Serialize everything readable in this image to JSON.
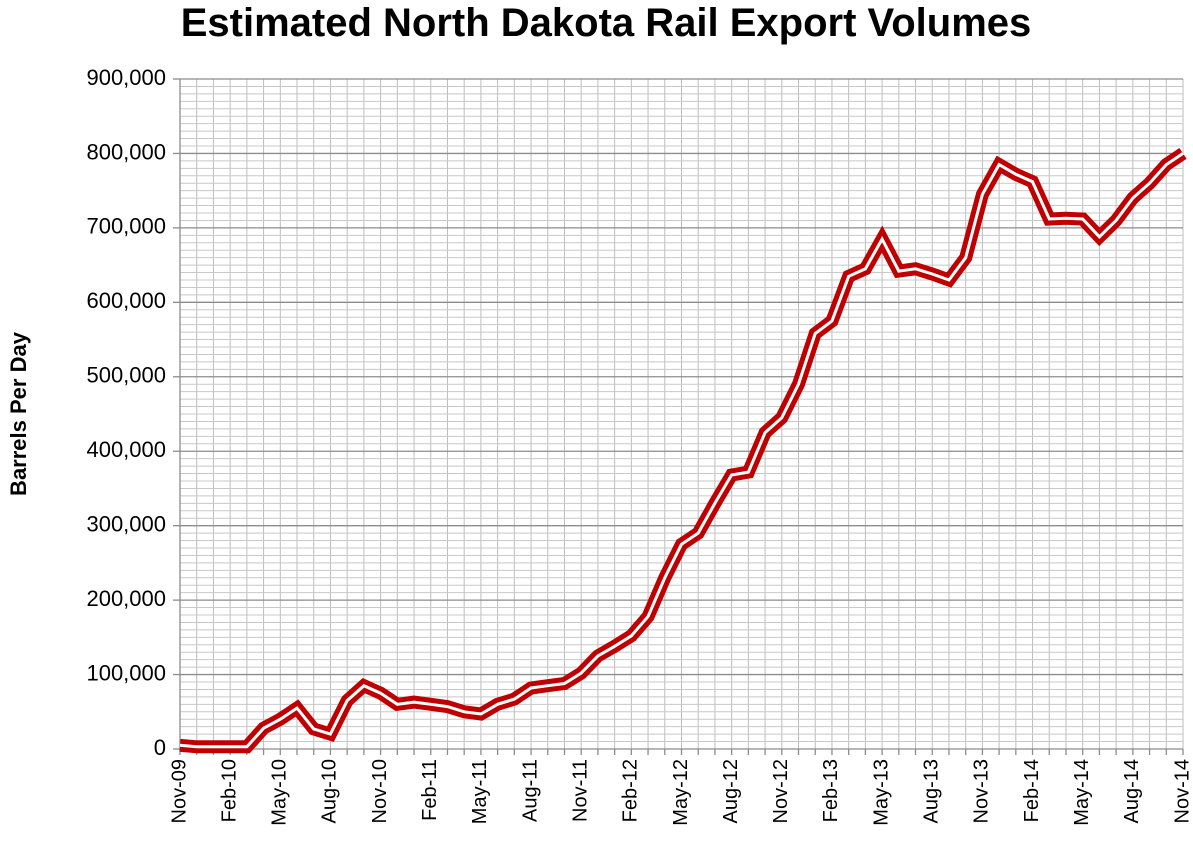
{
  "chart_data": {
    "type": "line",
    "title": "Estimated North Dakota Rail Export Volumes",
    "y_label": "Barrels Per Day",
    "categories": [
      "Nov-09",
      null,
      null,
      "Feb-10",
      null,
      null,
      "May-10",
      null,
      null,
      "Aug-10",
      null,
      null,
      "Nov-10",
      null,
      null,
      "Feb-11",
      null,
      null,
      "May-11",
      null,
      null,
      "Aug-11",
      null,
      null,
      "Nov-11",
      null,
      null,
      "Feb-12",
      null,
      null,
      "May-12",
      null,
      null,
      "Aug-12",
      null,
      null,
      "Nov-12",
      null,
      null,
      "Feb-13",
      null,
      null,
      "May-13",
      null,
      null,
      "Aug-13",
      null,
      null,
      "Nov-13",
      null,
      null,
      "Feb-14",
      null,
      null,
      "May-14",
      null,
      null,
      "Aug-14",
      null,
      null,
      "Nov-14"
    ],
    "series": [
      {
        "name": "Barrels Per Day",
        "color": "#c00000",
        "values": [
          5000,
          3000,
          3000,
          3000,
          3000,
          28000,
          40000,
          55000,
          27000,
          20000,
          65000,
          85000,
          75000,
          60000,
          63000,
          60000,
          57000,
          50000,
          47000,
          60000,
          67000,
          82000,
          85000,
          88000,
          102000,
          125000,
          138000,
          152000,
          178000,
          230000,
          275000,
          290000,
          330000,
          368000,
          372000,
          425000,
          445000,
          490000,
          558000,
          575000,
          635000,
          645000,
          685000,
          642000,
          645000,
          638000,
          630000,
          660000,
          745000,
          785000,
          772000,
          762000,
          712000,
          713000,
          712000,
          688000,
          710000,
          740000,
          760000,
          785000,
          800000
        ]
      }
    ],
    "ylim": [
      0,
      900000
    ],
    "yticks": [
      {
        "value": 0,
        "label": "0"
      },
      {
        "value": 100000,
        "label": "100,000"
      },
      {
        "value": 200000,
        "label": "200,000"
      },
      {
        "value": 300000,
        "label": "300,000"
      },
      {
        "value": 400000,
        "label": "400,000"
      },
      {
        "value": 500000,
        "label": "500,000"
      },
      {
        "value": 600000,
        "label": "600,000"
      },
      {
        "value": 700000,
        "label": "700,000"
      },
      {
        "value": 800000,
        "label": "800,000"
      },
      {
        "value": 900000,
        "label": "900,000"
      }
    ],
    "grid": true
  }
}
